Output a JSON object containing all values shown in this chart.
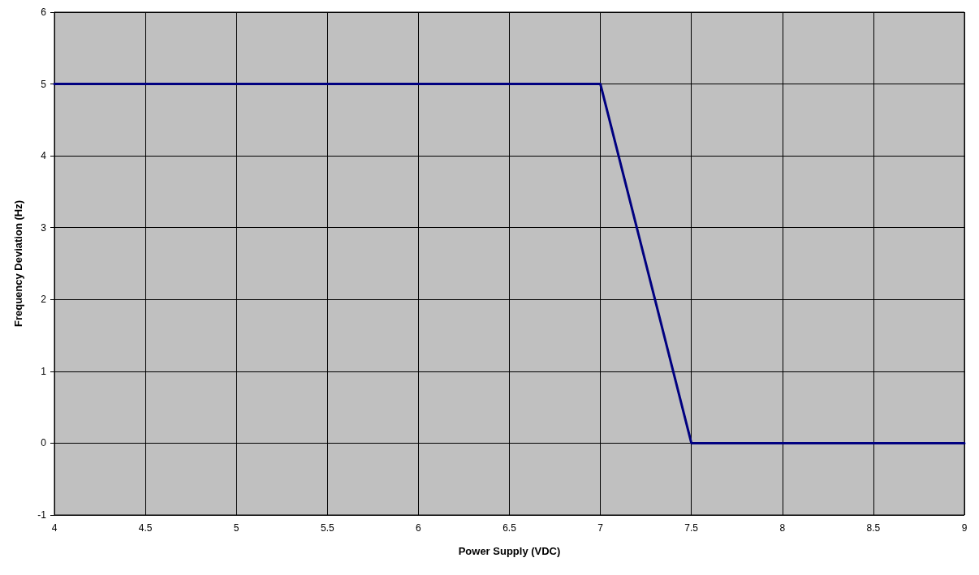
{
  "chart_data": {
    "type": "line",
    "xlabel": "Power Supply (VDC)",
    "ylabel": "Frequency Deviation (Hz)",
    "x": [
      4,
      7,
      7.5,
      9
    ],
    "series": [
      {
        "color": "#000080",
        "values": [
          5,
          5,
          0,
          0
        ]
      }
    ],
    "xlim": [
      4,
      9
    ],
    "xticks": [
      4,
      4.5,
      5,
      5.5,
      6,
      6.5,
      7,
      7.5,
      8,
      8.5,
      9
    ],
    "ylim": [
      -1,
      6
    ],
    "yticks": [
      -1,
      0,
      1,
      2,
      3,
      4,
      5,
      6
    ],
    "grid": true,
    "marker": "none",
    "line_style": "solid"
  }
}
